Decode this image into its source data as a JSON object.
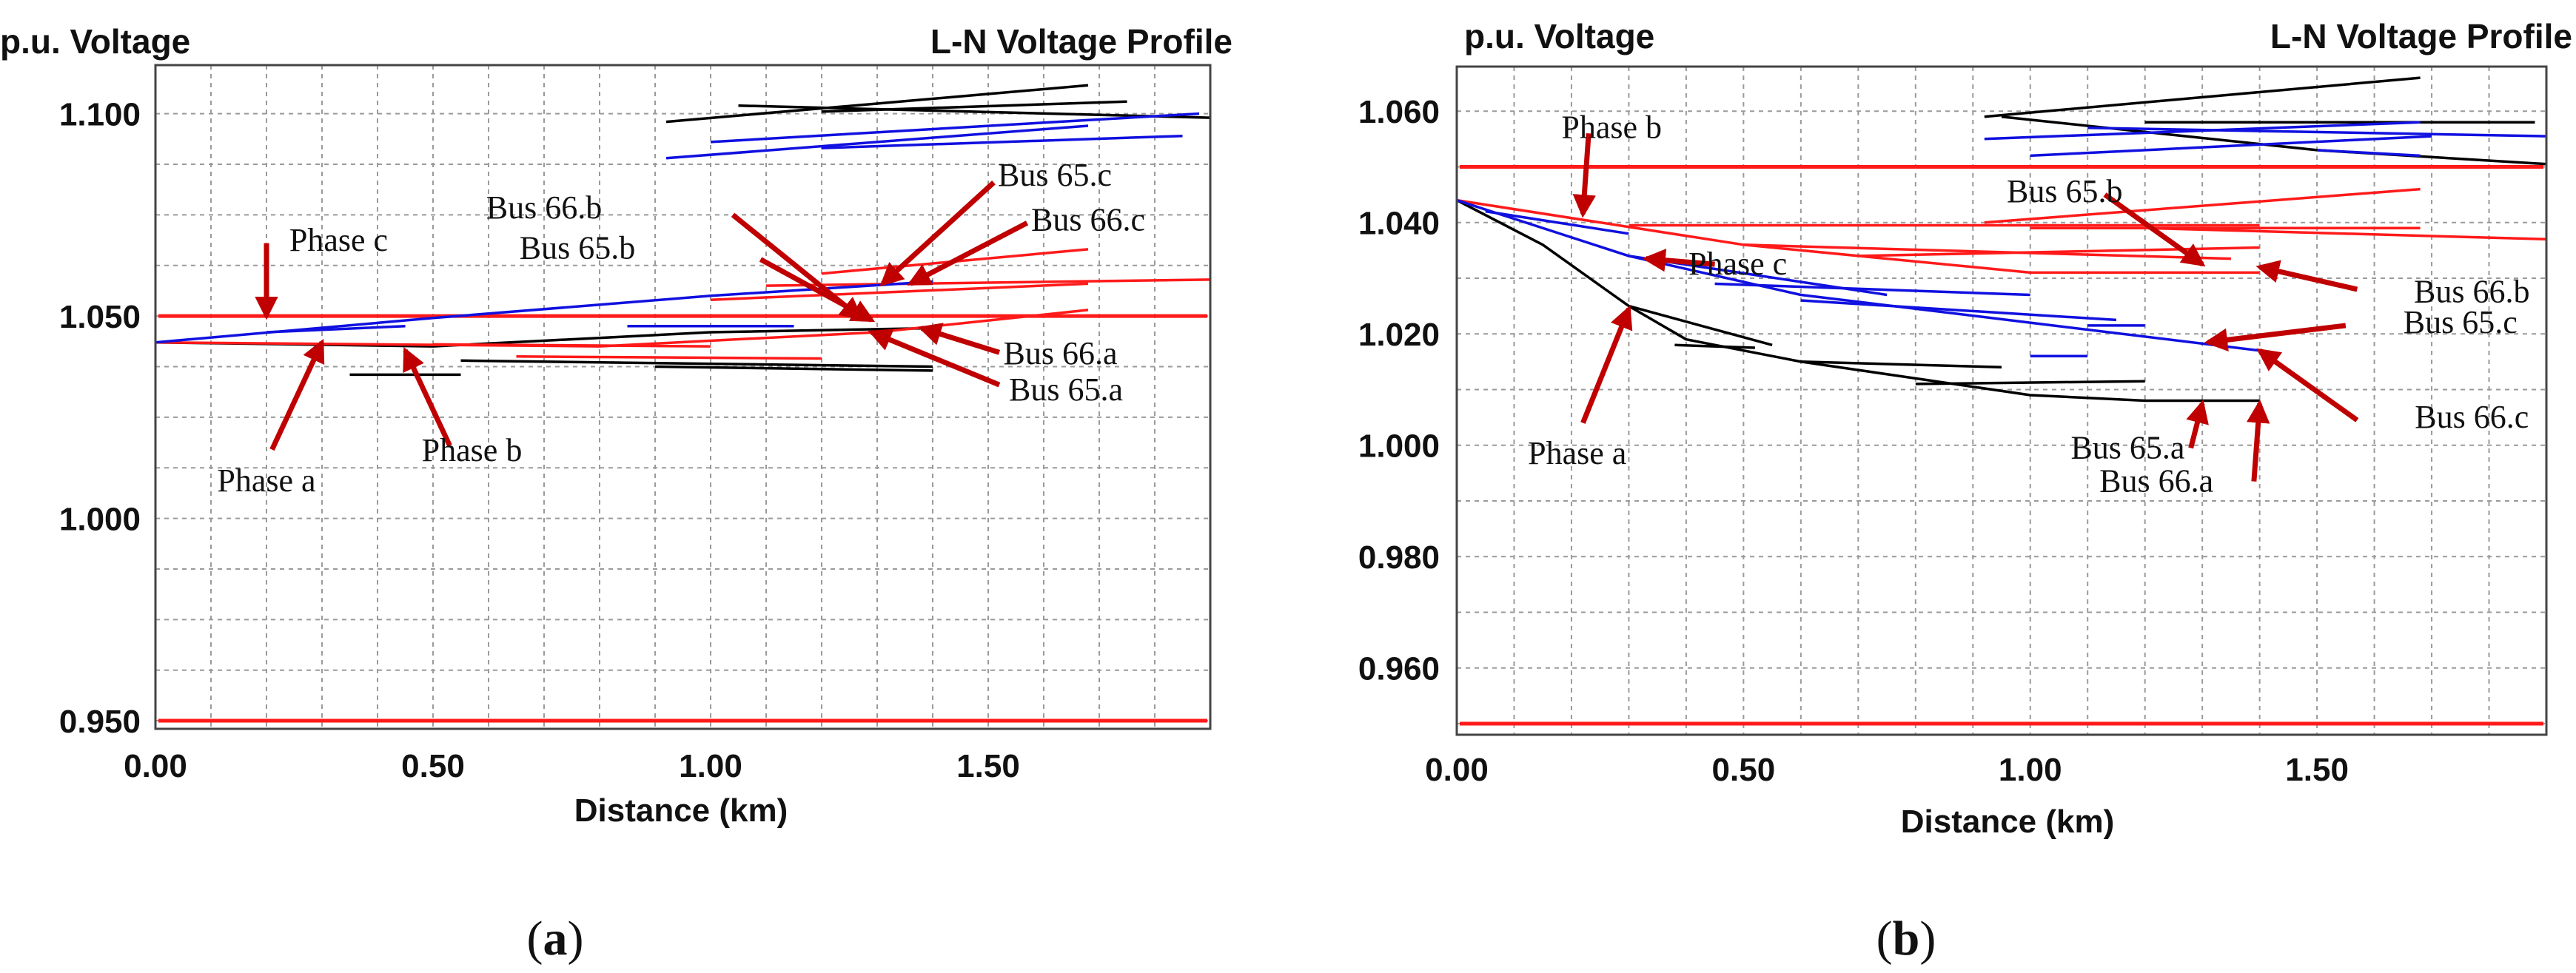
{
  "colors": {
    "phase_a": "#000000",
    "phase_b": "#ff1a1a",
    "phase_c": "#1010e0",
    "limit": "#ff1a1a",
    "arrow": "#c00000",
    "grid": "#9a9a9a"
  },
  "chart_data": [
    {
      "panel": "(a)",
      "type": "line",
      "title": "L-N Voltage Profile",
      "ylabel": "p.u. Voltage",
      "xlabel": "Distance (km)",
      "xlim": [
        0,
        1.9
      ],
      "ylim": [
        0.948,
        1.112
      ],
      "x_ticks": [
        "0.00",
        "0.50",
        "1.00",
        "1.50"
      ],
      "y_ticks": [
        {
          "value": 1.1,
          "label": "1.100"
        },
        {
          "value": 1.05,
          "label": "1.050"
        },
        {
          "value": 1.0,
          "label": "1.000"
        },
        {
          "value": 0.95,
          "label": "0.950"
        }
      ],
      "limits": [
        1.05,
        0.95
      ],
      "grid": true,
      "series": [
        {
          "phase": "a",
          "name": "Phase a",
          "segments": [
            [
              [
                0,
                1.0435
              ],
              [
                0.5,
                1.0425
              ],
              [
                1.0,
                1.046
              ],
              [
                1.4,
                1.047
              ]
            ],
            [
              [
                0.35,
                1.0355
              ],
              [
                0.55,
                1.0355
              ]
            ],
            [
              [
                0.55,
                1.039
              ],
              [
                1.4,
                1.0375
              ]
            ],
            [
              [
                0.9,
                1.0375
              ],
              [
                1.4,
                1.0365
              ]
            ],
            [
              [
                0.92,
                1.098
              ],
              [
                1.68,
                1.107
              ]
            ],
            [
              [
                1.05,
                1.102
              ],
              [
                1.9,
                1.099
              ]
            ],
            [
              [
                1.2,
                1.1005
              ],
              [
                1.75,
                1.103
              ]
            ]
          ]
        },
        {
          "phase": "b",
          "name": "Phase b",
          "segments": [
            [
              [
                0,
                1.0435
              ],
              [
                0.8,
                1.0425
              ],
              [
                1.3,
                1.046
              ],
              [
                1.68,
                1.0515
              ]
            ],
            [
              [
                0.5,
                1.043
              ],
              [
                1.0,
                1.0425
              ]
            ],
            [
              [
                0.65,
                1.04
              ],
              [
                1.2,
                1.0395
              ]
            ],
            [
              [
                1.0,
                1.054
              ],
              [
                1.68,
                1.058
              ]
            ],
            [
              [
                1.1,
                1.0575
              ],
              [
                1.9,
                1.059
              ]
            ],
            [
              [
                1.2,
                1.0605
              ],
              [
                1.68,
                1.0665
              ]
            ]
          ]
        },
        {
          "phase": "c",
          "name": "Phase c",
          "segments": [
            [
              [
                0,
                1.0435
              ],
              [
                0.5,
                1.0495
              ],
              [
                1.0,
                1.055
              ],
              [
                1.4,
                1.0585
              ]
            ],
            [
              [
                0.2,
                1.046
              ],
              [
                0.45,
                1.0475
              ]
            ],
            [
              [
                0.92,
                1.089
              ],
              [
                1.68,
                1.097
              ]
            ],
            [
              [
                1.0,
                1.093
              ],
              [
                1.88,
                1.1
              ]
            ],
            [
              [
                1.2,
                1.0915
              ],
              [
                1.85,
                1.0945
              ]
            ],
            [
              [
                0.85,
                1.0475
              ],
              [
                1.15,
                1.0475
              ]
            ]
          ]
        }
      ],
      "annotations": [
        {
          "text": "Phase c",
          "tx": 0.33,
          "ty": 1.068,
          "px": 0.2,
          "py": 1.05,
          "hx": 0.2,
          "hy": 1.068
        },
        {
          "text": "Phase a",
          "tx": 0.2,
          "ty": 1.0085,
          "px": 0.3,
          "py": 1.0435,
          "hx": 0.21,
          "hy": 1.017
        },
        {
          "text": "Phase b",
          "tx": 0.57,
          "ty": 1.016,
          "px": 0.45,
          "py": 1.0415,
          "hx": 0.53,
          "hy": 1.018
        },
        {
          "text": "Bus 66.b",
          "tx": 0.7,
          "ty": 1.076,
          "px": 1.27,
          "py": 1.0495,
          "hx": 1.04,
          "hy": 1.075
        },
        {
          "text": "Bus 65.b",
          "tx": 0.76,
          "ty": 1.066,
          "px": 1.29,
          "py": 1.049,
          "hx": 1.09,
          "hy": 1.064
        },
        {
          "text": "Bus 65.c",
          "tx": 1.62,
          "ty": 1.084,
          "px": 1.31,
          "py": 1.058,
          "hx": 1.51,
          "hy": 1.083
        },
        {
          "text": "Bus 66.c",
          "tx": 1.68,
          "ty": 1.073,
          "px": 1.36,
          "py": 1.058,
          "hx": 1.57,
          "hy": 1.073
        },
        {
          "text": "Bus 66.a",
          "tx": 1.63,
          "ty": 1.04,
          "px": 1.38,
          "py": 1.047,
          "hx": 1.52,
          "hy": 1.041
        },
        {
          "text": "Bus 65.a",
          "tx": 1.64,
          "ty": 1.031,
          "px": 1.29,
          "py": 1.046,
          "hx": 1.52,
          "hy": 1.033
        }
      ],
      "caption": "a"
    },
    {
      "panel": "(b)",
      "type": "line",
      "title": "L-N Voltage Profile",
      "ylabel": "p.u. Voltage",
      "xlabel": "Distance (km)",
      "xlim": [
        0,
        1.9
      ],
      "ylim": [
        0.948,
        1.068
      ],
      "x_ticks": [
        "0.00",
        "0.50",
        "1.00",
        "1.50"
      ],
      "y_ticks": [
        {
          "value": 1.06,
          "label": "1.060"
        },
        {
          "value": 1.04,
          "label": "1.040"
        },
        {
          "value": 1.02,
          "label": "1.020"
        },
        {
          "value": 1.0,
          "label": "1.000"
        },
        {
          "value": 0.98,
          "label": "0.980"
        },
        {
          "value": 0.96,
          "label": "0.960"
        }
      ],
      "limits": [
        1.05,
        0.95
      ],
      "grid": true,
      "series": [
        {
          "phase": "a",
          "name": "Phase a",
          "segments": [
            [
              [
                0,
                1.044
              ],
              [
                0.15,
                1.036
              ],
              [
                0.3,
                1.025
              ],
              [
                0.4,
                1.019
              ],
              [
                0.6,
                1.015
              ],
              [
                0.8,
                1.012
              ],
              [
                1.0,
                1.009
              ],
              [
                1.2,
                1.008
              ],
              [
                1.4,
                1.008
              ]
            ],
            [
              [
                0.3,
                1.025
              ],
              [
                0.55,
                1.018
              ]
            ],
            [
              [
                0.6,
                1.015
              ],
              [
                0.95,
                1.014
              ]
            ],
            [
              [
                0.8,
                1.011
              ],
              [
                1.2,
                1.0115
              ]
            ],
            [
              [
                0.38,
                1.018
              ],
              [
                0.52,
                1.0175
              ]
            ],
            [
              [
                0.92,
                1.059
              ],
              [
                1.68,
                1.066
              ]
            ],
            [
              [
                0.95,
                1.059
              ],
              [
                1.5,
                1.053
              ],
              [
                1.9,
                1.0505
              ]
            ],
            [
              [
                1.2,
                1.058
              ],
              [
                1.88,
                1.058
              ]
            ]
          ]
        },
        {
          "phase": "b",
          "name": "Phase b",
          "segments": [
            [
              [
                0,
                1.044
              ],
              [
                0.5,
                1.036
              ],
              [
                1.0,
                1.031
              ],
              [
                1.4,
                1.031
              ]
            ],
            [
              [
                0.3,
                1.0395
              ],
              [
                1.4,
                1.0395
              ]
            ],
            [
              [
                0.5,
                1.036
              ],
              [
                1.35,
                1.0335
              ]
            ],
            [
              [
                0.7,
                1.034
              ],
              [
                1.4,
                1.0355
              ]
            ],
            [
              [
                0.92,
                1.04
              ],
              [
                1.68,
                1.046
              ]
            ],
            [
              [
                1.2,
                1.039
              ],
              [
                1.9,
                1.037
              ]
            ],
            [
              [
                1.0,
                1.039
              ],
              [
                1.68,
                1.039
              ]
            ]
          ]
        },
        {
          "phase": "c",
          "name": "Phase c",
          "segments": [
            [
              [
                0,
                1.044
              ],
              [
                0.3,
                1.034
              ],
              [
                0.6,
                1.027
              ],
              [
                1.0,
                1.022
              ],
              [
                1.4,
                1.017
              ]
            ],
            [
              [
                0.3,
                1.034
              ],
              [
                0.75,
                1.027
              ]
            ],
            [
              [
                0.45,
                1.029
              ],
              [
                1.0,
                1.027
              ]
            ],
            [
              [
                0.6,
                1.026
              ],
              [
                1.15,
                1.0225
              ]
            ],
            [
              [
                0.05,
                1.042
              ],
              [
                0.3,
                1.038
              ]
            ],
            [
              [
                0.92,
                1.055
              ],
              [
                1.68,
                1.058
              ]
            ],
            [
              [
                1.0,
                1.052
              ],
              [
                1.7,
                1.0555
              ]
            ],
            [
              [
                1.1,
                1.057
              ],
              [
                1.9,
                1.0555
              ]
            ],
            [
              [
                1.5,
                1.053
              ],
              [
                1.68,
                1.052
              ]
            ],
            [
              [
                1.0,
                1.016
              ],
              [
                1.1,
                1.016
              ]
            ],
            [
              [
                1.1,
                1.0215
              ],
              [
                1.2,
                1.0215
              ]
            ]
          ]
        }
      ],
      "annotations": [
        {
          "text": "Phase b",
          "tx": 0.27,
          "ty": 1.0565,
          "px": 0.22,
          "py": 1.0415,
          "hx": 0.23,
          "hy": 1.056
        },
        {
          "text": "Phase c",
          "tx": 0.49,
          "ty": 1.032,
          "px": 0.33,
          "py": 1.0335,
          "hx": 0.45,
          "hy": 1.0325
        },
        {
          "text": "Phase a",
          "tx": 0.21,
          "ty": 0.998,
          "px": 0.3,
          "py": 1.0245,
          "hx": 0.22,
          "hy": 1.004
        },
        {
          "text": "Bus 65.b",
          "tx": 1.06,
          "ty": 1.045,
          "px": 1.3,
          "py": 1.0325,
          "hx": 1.13,
          "hy": 1.045
        },
        {
          "text": "Bus 66.b",
          "tx": 1.77,
          "ty": 1.027,
          "px": 1.4,
          "py": 1.032,
          "hx": 1.57,
          "hy": 1.028
        },
        {
          "text": "Bus 65.c",
          "tx": 1.75,
          "ty": 1.0215,
          "px": 1.31,
          "py": 1.0185,
          "hx": 1.55,
          "hy": 1.0215
        },
        {
          "text": "Bus 66.c",
          "tx": 1.77,
          "ty": 1.0045,
          "px": 1.4,
          "py": 1.017,
          "hx": 1.57,
          "hy": 1.0045
        },
        {
          "text": "Bus 65.a",
          "tx": 1.17,
          "ty": 0.999,
          "px": 1.3,
          "py": 1.0075,
          "hx": 1.28,
          "hy": 0.9995
        },
        {
          "text": "Bus 66.a",
          "tx": 1.22,
          "ty": 0.993,
          "px": 1.4,
          "py": 1.0075,
          "hx": 1.39,
          "hy": 0.9935
        }
      ],
      "caption": "b"
    }
  ]
}
